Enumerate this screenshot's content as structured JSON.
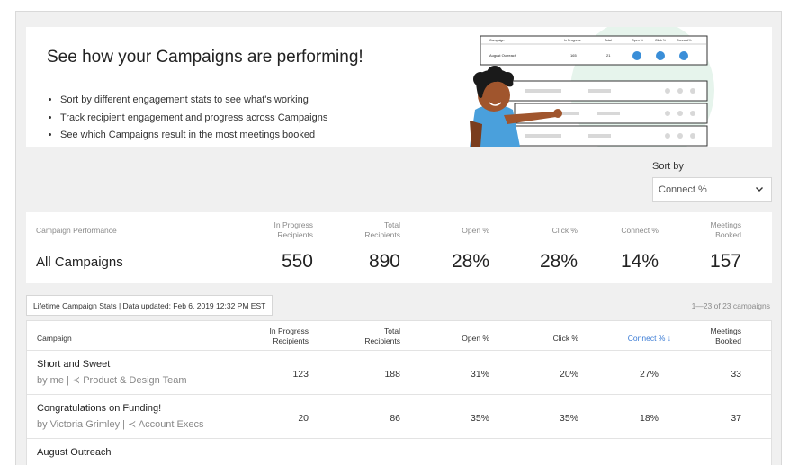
{
  "close_label": "×",
  "banner": {
    "title": "See how your Campaigns are performing!",
    "bullets": [
      "Sort by different engagement stats to see what's working",
      "Track recipient engagement and progress across Campaigns",
      "See which Campaigns result in the most meetings booked"
    ],
    "illustration": {
      "headers": [
        "Campaign",
        "In Progress",
        "Total",
        "Open %",
        "Click %",
        "Connect%"
      ],
      "row": {
        "campaign": "August Outreach",
        "in_progress": "165",
        "total": "21"
      }
    }
  },
  "sort": {
    "label": "Sort by",
    "value": "Connect %"
  },
  "summary": {
    "headers": {
      "performance": "Campaign Performance",
      "in_progress_1": "In Progress",
      "in_progress_2": "Recipients",
      "total_1": "Total",
      "total_2": "Recipients",
      "open": "Open %",
      "click": "Click %",
      "connect": "Connect %",
      "meetings_1": "Meetings",
      "meetings_2": "Booked"
    },
    "name": "All Campaigns",
    "in_progress": "550",
    "total": "890",
    "open": "28%",
    "click": "28%",
    "connect": "14%",
    "meetings": "157"
  },
  "lifetime": {
    "label": "Lifetime Campaign Stats | Data updated: Feb 6, 2019 12:32 PM EST",
    "count": "1—23 of 23 campaigns"
  },
  "table": {
    "headers": {
      "campaign": "Campaign",
      "in_progress_1": "In Progress",
      "in_progress_2": "Recipients",
      "total_1": "Total",
      "total_2": "Recipients",
      "open": "Open %",
      "click": "Click %",
      "connect": "Connect % ↓",
      "meetings_1": "Meetings",
      "meetings_2": "Booked"
    },
    "rows": [
      {
        "name": "Short and Sweet",
        "by": "by me | ≺ Product & Design Team",
        "in_progress": "123",
        "total": "188",
        "open": "31%",
        "click": "20%",
        "connect": "27%",
        "meetings": "33"
      },
      {
        "name": "Congratulations on Funding!",
        "by": "by Victoria Grimley | ≺ Account Execs",
        "in_progress": "20",
        "total": "86",
        "open": "35%",
        "click": "35%",
        "connect": "18%",
        "meetings": "37"
      },
      {
        "name": "August Outreach",
        "by": "",
        "in_progress": "",
        "total": "",
        "open": "",
        "click": "",
        "connect": "",
        "meetings": ""
      }
    ]
  },
  "colors": {
    "accent": "#3a7bd5",
    "background": "#f0f0f0"
  }
}
